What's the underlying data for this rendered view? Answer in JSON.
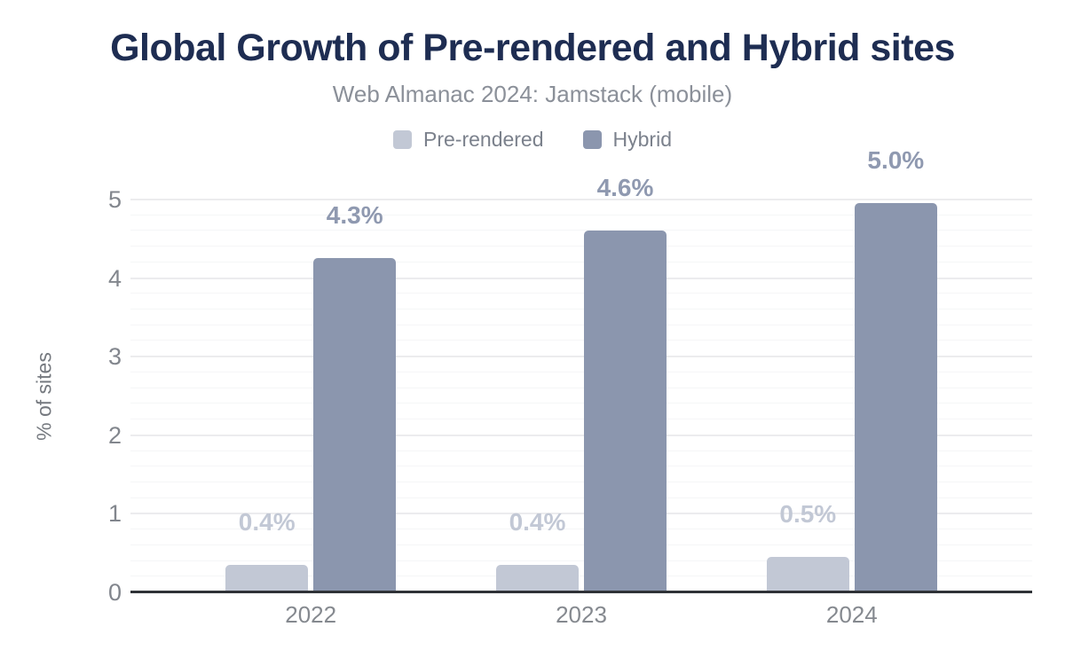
{
  "header": {
    "title": "Global Growth of Pre-rendered and Hybrid sites",
    "subtitle": "Web Almanac 2024: Jamstack (mobile)"
  },
  "legend": {
    "items": [
      {
        "label": "Pre-rendered",
        "color": "#c2c8d5"
      },
      {
        "label": "Hybrid",
        "color": "#8b96ae"
      }
    ]
  },
  "chart_data": {
    "type": "bar",
    "title": "Global Growth of Pre-rendered and Hybrid sites",
    "subtitle": "Web Almanac 2024: Jamstack (mobile)",
    "categories": [
      "2022",
      "2023",
      "2024"
    ],
    "series": [
      {
        "name": "Pre-rendered",
        "color": "#c2c8d5",
        "label_color": "#c2c8d5",
        "values": [
          0.4,
          0.4,
          0.5
        ],
        "labels": [
          "0.4%",
          "0.4%",
          "0.5%"
        ],
        "bar_render_values": [
          0.35,
          0.35,
          0.45
        ]
      },
      {
        "name": "Hybrid",
        "color": "#8b96ae",
        "label_color": "#8f99b0",
        "values": [
          4.3,
          4.6,
          5.0
        ],
        "labels": [
          "4.3%",
          "4.6%",
          "5.0%"
        ],
        "bar_render_values": [
          4.26,
          4.6,
          4.95
        ]
      }
    ],
    "xlabel": "",
    "ylabel": "% of sites",
    "ylim": [
      0,
      5
    ],
    "yticks": [
      "0",
      "1",
      "2",
      "3",
      "4",
      "5"
    ],
    "minor_tick_step": 0.2,
    "grid": true,
    "legend_position": "top",
    "value_suffix": "%"
  },
  "colors": {
    "background": "#ffffff",
    "title": "#1e2d52",
    "subtitle": "#8b9099",
    "legend_text": "#7b818c",
    "axis_line": "#2f3237",
    "tick_label": "#82868d",
    "y_axis_title": "#75797f",
    "major_grid": "#ececee",
    "minor_grid": "#f5f6f7"
  }
}
